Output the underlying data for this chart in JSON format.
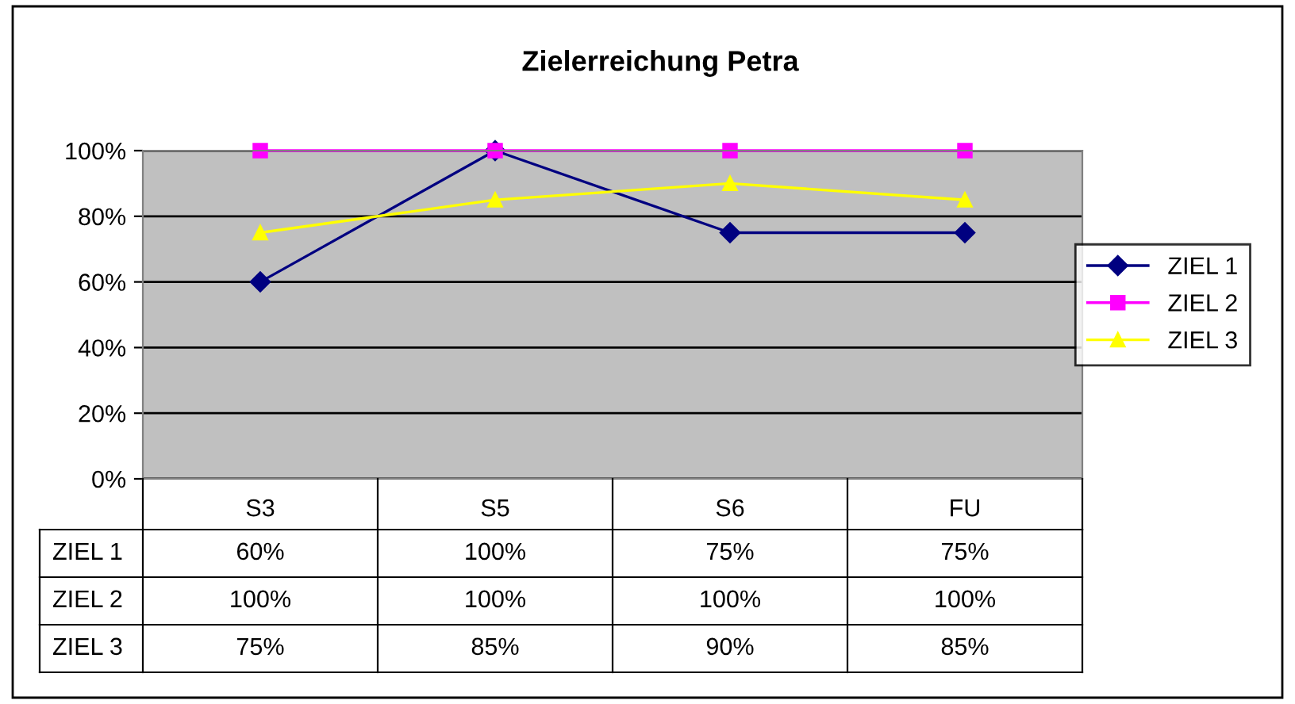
{
  "chart_data": {
    "type": "line",
    "title": "Zielerreichung Petra",
    "categories": [
      "S3",
      "S5",
      "S6",
      "FU"
    ],
    "series": [
      {
        "name": "ZIEL 1",
        "color": "#000080",
        "marker": "diamond",
        "values": [
          60,
          100,
          75,
          75
        ],
        "value_labels": [
          "60%",
          "100%",
          "75%",
          "75%"
        ]
      },
      {
        "name": "ZIEL 2",
        "color": "#ff00ff",
        "marker": "square",
        "values": [
          100,
          100,
          100,
          100
        ],
        "value_labels": [
          "100%",
          "100%",
          "100%",
          "100%"
        ]
      },
      {
        "name": "ZIEL 3",
        "color": "#ffff00",
        "marker": "triangle",
        "values": [
          75,
          85,
          90,
          85
        ],
        "value_labels": [
          "75%",
          "85%",
          "90%",
          "85%"
        ]
      }
    ],
    "ylim": [
      0,
      100
    ],
    "yticks": [
      {
        "value": 0,
        "label": "0%"
      },
      {
        "value": 20,
        "label": "20%"
      },
      {
        "value": 40,
        "label": "40%"
      },
      {
        "value": 60,
        "label": "60%"
      },
      {
        "value": 80,
        "label": "80%"
      },
      {
        "value": 100,
        "label": "100%"
      }
    ],
    "grid": "y",
    "legend": "right",
    "line_style": "solid"
  }
}
